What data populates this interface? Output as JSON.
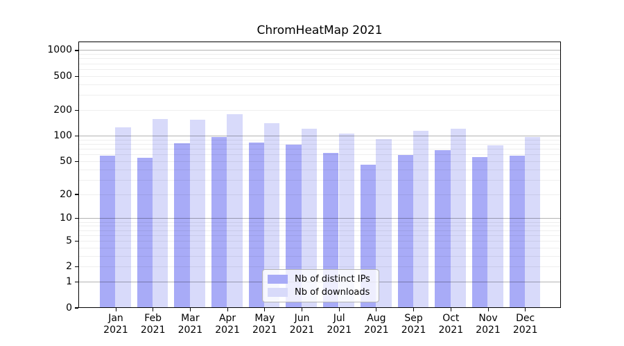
{
  "chart_data": {
    "type": "bar",
    "title": "ChromHeatMap 2021",
    "y_scale": "log1p",
    "ylim": [
      0,
      1200
    ],
    "grid": true,
    "legend_position": "lower-center-inside",
    "categories": [
      {
        "month": "Jan",
        "year": "2021"
      },
      {
        "month": "Feb",
        "year": "2021"
      },
      {
        "month": "Mar",
        "year": "2021"
      },
      {
        "month": "Apr",
        "year": "2021"
      },
      {
        "month": "May",
        "year": "2021"
      },
      {
        "month": "Jun",
        "year": "2021"
      },
      {
        "month": "Jul",
        "year": "2021"
      },
      {
        "month": "Aug",
        "year": "2021"
      },
      {
        "month": "Sep",
        "year": "2021"
      },
      {
        "month": "Oct",
        "year": "2021"
      },
      {
        "month": "Nov",
        "year": "2021"
      },
      {
        "month": "Dec",
        "year": "2021"
      }
    ],
    "series": [
      {
        "name": "Nb of distinct IPs",
        "color": "#a8abf7",
        "values": [
          57,
          54,
          80,
          95,
          82,
          77,
          62,
          45,
          59,
          67,
          55,
          57
        ]
      },
      {
        "name": "Nb of downloads",
        "color": "#d8dafa",
        "values": [
          125,
          155,
          152,
          176,
          138,
          119,
          104,
          90,
          113,
          120,
          76,
          95
        ]
      }
    ],
    "y_ticks": [
      0,
      1,
      2,
      5,
      10,
      20,
      50,
      100,
      200,
      500,
      1000
    ],
    "major_grid_values": [
      1,
      10,
      100,
      1000
    ],
    "minor_grid_values": [
      2,
      3,
      4,
      5,
      6,
      7,
      8,
      9,
      20,
      30,
      40,
      50,
      60,
      70,
      80,
      90,
      200,
      300,
      400,
      500,
      600,
      700,
      800,
      900
    ]
  },
  "colors": {
    "major_grid": "rgba(0,0,0,0.30)",
    "minor_grid": "rgba(0,0,0,0.065)",
    "spine": "#000000",
    "text": "#000000",
    "legend_border": "#b3b3b3"
  }
}
